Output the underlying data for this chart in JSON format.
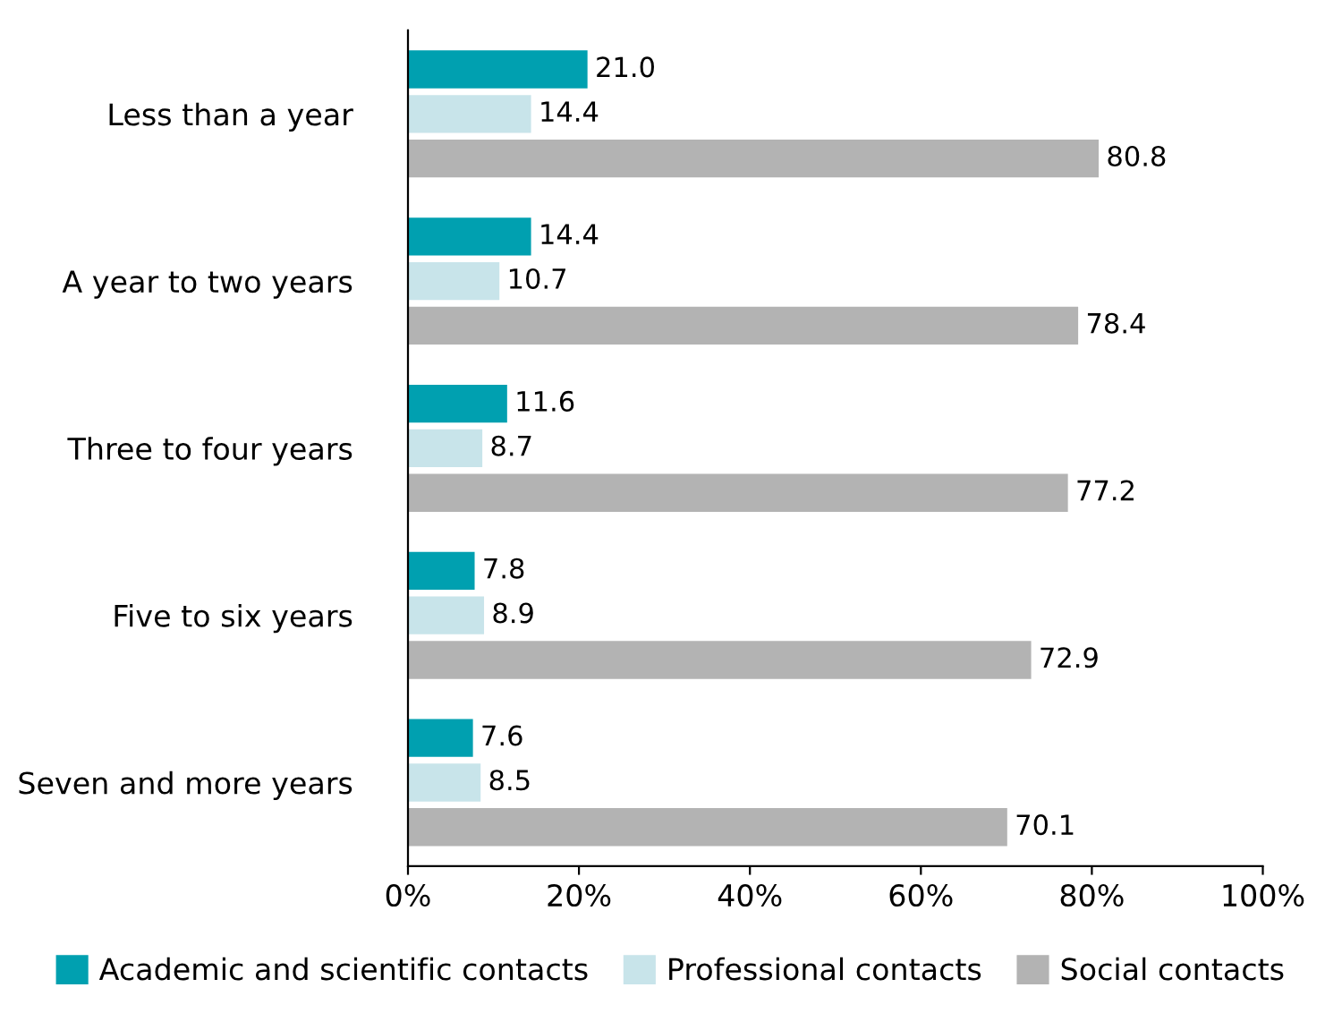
{
  "chart_data": {
    "type": "bar",
    "orientation": "horizontal",
    "categories": [
      "Less than a year",
      "A year to two years",
      "Three to four years",
      "Five to six years",
      "Seven and more years"
    ],
    "series": [
      {
        "name": "Academic and scientific contacts",
        "color": "#00a0b0",
        "values": [
          21.0,
          14.4,
          11.6,
          7.8,
          7.6
        ],
        "value_labels": [
          "21.0",
          "14.4",
          "11.6",
          "7.8",
          "7.6"
        ]
      },
      {
        "name": "Professional contacts",
        "color": "#c8e4ea",
        "values": [
          14.4,
          10.7,
          8.7,
          8.9,
          8.5
        ],
        "value_labels": [
          "14.4",
          "10.7",
          "8.7",
          "8.9",
          "8.5"
        ]
      },
      {
        "name": "Social contacts",
        "color": "#b3b3b3",
        "values": [
          80.8,
          78.4,
          77.2,
          72.9,
          70.1
        ],
        "value_labels": [
          "80.8",
          "78.4",
          "77.2",
          "72.9",
          "70.1"
        ]
      }
    ],
    "xlim": [
      0,
      100
    ],
    "xticks": [
      {
        "value": 0,
        "label": "0%"
      },
      {
        "value": 20,
        "label": "20%"
      },
      {
        "value": 40,
        "label": "40%"
      },
      {
        "value": 60,
        "label": "60%"
      },
      {
        "value": 80,
        "label": "80%"
      },
      {
        "value": 100,
        "label": "100%"
      }
    ],
    "grid": false,
    "legend": "bottom"
  }
}
